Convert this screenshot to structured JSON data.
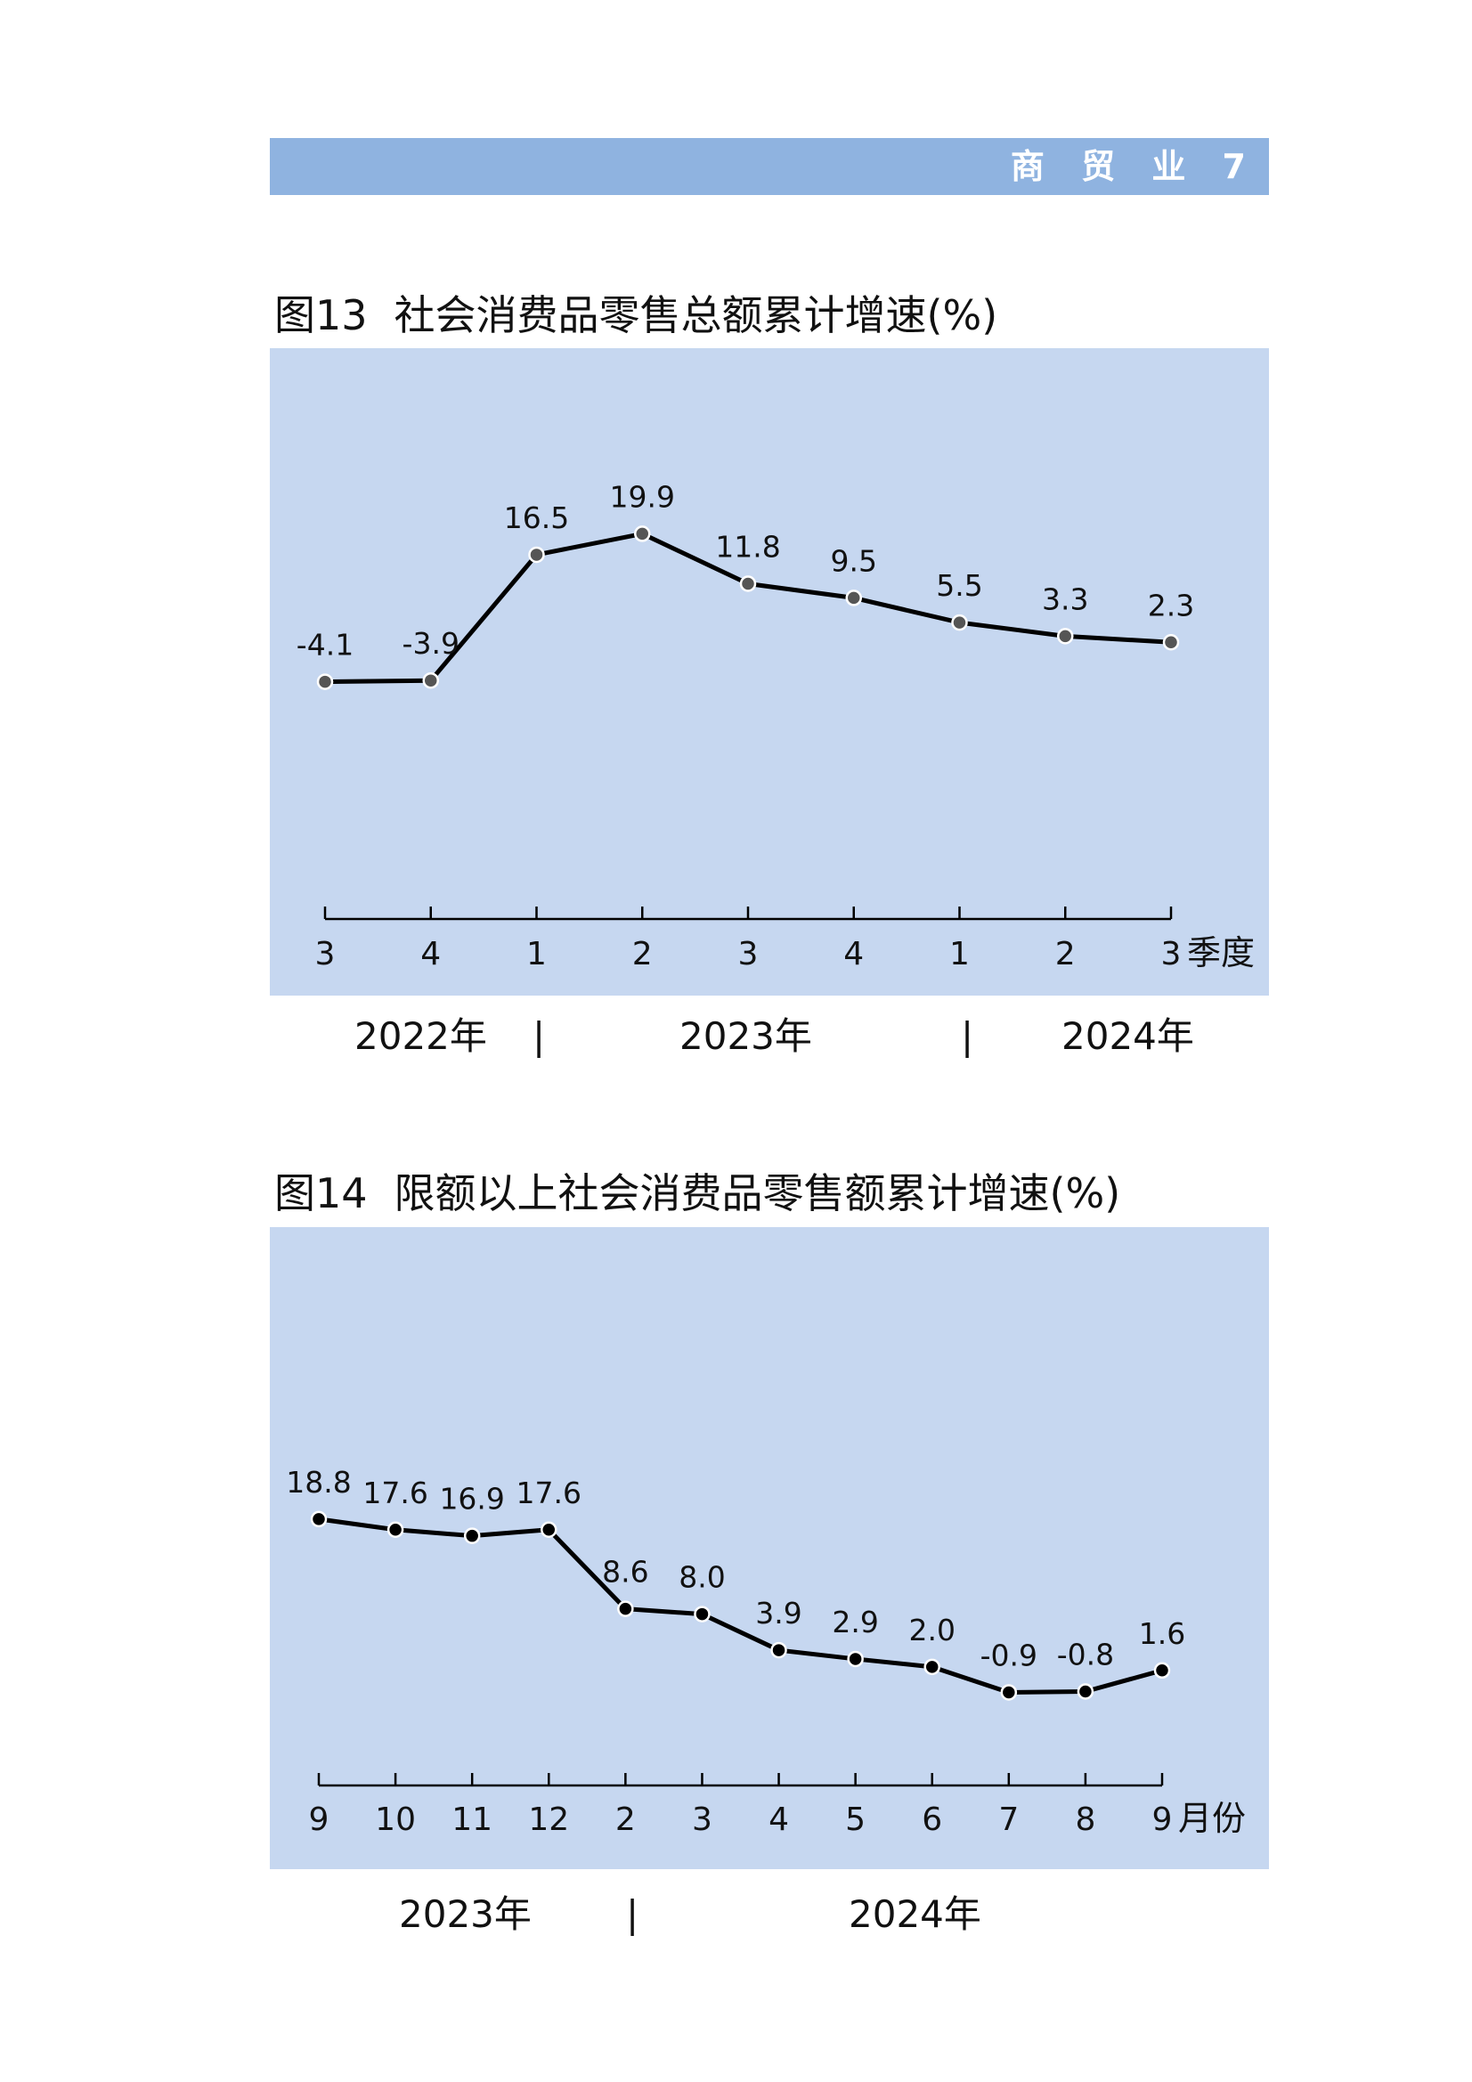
{
  "header": {
    "section_label": "商 贸 业 7"
  },
  "figures": [
    {
      "number": "图13",
      "title": "社会消费品零售总额累计增速(%)",
      "x_unit": "季度",
      "years": [
        "2022年",
        "2023年",
        "2024年"
      ]
    },
    {
      "number": "图14",
      "title": "限额以上社会消费品零售额累计增速(%)",
      "x_unit": "月份",
      "years": [
        "2023年",
        "2024年"
      ]
    }
  ],
  "colors": {
    "header_bar": "#8fb3e0",
    "panel_background": "#c6d7f0",
    "line": "#000000",
    "marker_fig13": "#555555",
    "marker_fig14": "#000000"
  },
  "chart_data": [
    {
      "type": "line",
      "title": "社会消费品零售总额累计增速(%)",
      "categories": [
        "3",
        "4",
        "1",
        "2",
        "3",
        "4",
        "1",
        "2",
        "3"
      ],
      "category_years": [
        "2022年",
        "2022年",
        "2023年",
        "2023年",
        "2023年",
        "2023年",
        "2024年",
        "2024年",
        "2024年"
      ],
      "values": [
        -4.1,
        -3.9,
        16.5,
        19.9,
        11.8,
        9.5,
        5.5,
        3.3,
        2.3
      ],
      "labels": [
        "-4.1",
        "-3.9",
        "16.5",
        "19.9",
        "11.8",
        "9.5",
        "5.5",
        "3.3",
        "2.3"
      ],
      "xlabel": "季度",
      "ylabel": "",
      "ylim": [
        -55,
        50
      ],
      "grid": false,
      "legend": "none"
    },
    {
      "type": "line",
      "title": "限额以上社会消费品零售额累计增速(%)",
      "categories": [
        "9",
        "10",
        "11",
        "12",
        "2",
        "3",
        "4",
        "5",
        "6",
        "7",
        "8",
        "9"
      ],
      "category_years": [
        "2023年",
        "2023年",
        "2023年",
        "2023年",
        "2024年",
        "2024年",
        "2024年",
        "2024年",
        "2024年",
        "2024年",
        "2024年",
        "2024年"
      ],
      "values": [
        18.8,
        17.6,
        16.9,
        17.6,
        8.6,
        8.0,
        3.9,
        2.9,
        2.0,
        -0.9,
        -0.8,
        1.6
      ],
      "labels": [
        "18.8",
        "17.6",
        "16.9",
        "17.6",
        "8.6",
        "8.0",
        "3.9",
        "2.9",
        "2.0",
        "-0.9",
        "-0.8",
        "1.6"
      ],
      "xlabel": "月份",
      "ylabel": "",
      "ylim": [
        -21,
        52
      ],
      "grid": false,
      "legend": "none"
    }
  ]
}
